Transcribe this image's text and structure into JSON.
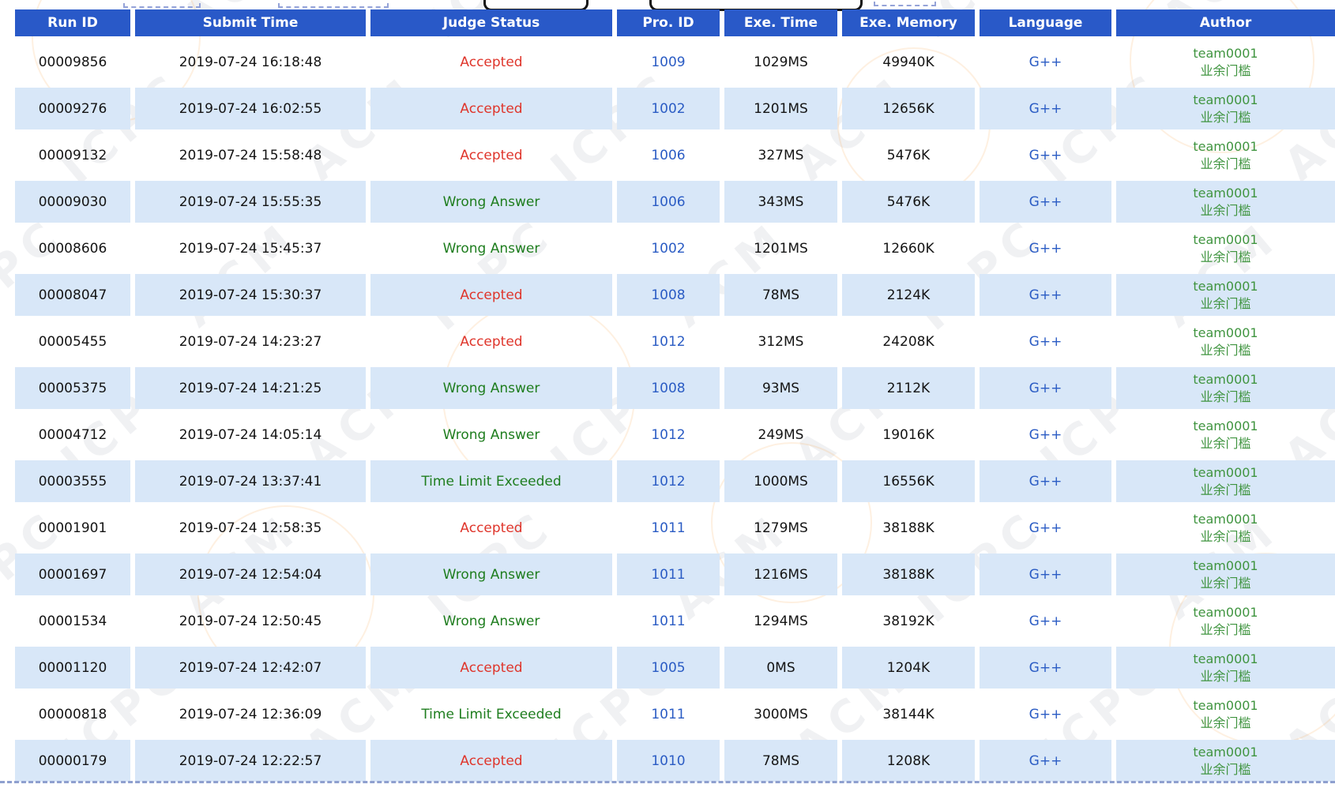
{
  "colors": {
    "header_bg": "#2959c8",
    "header_text": "#ffffff",
    "row_alt_bg": "#d8e7f8",
    "link_blue": "#2b5cc4",
    "status_accepted": "#df352b",
    "status_failed": "#1e7d1e",
    "author_green": "#3f943f",
    "divider_dash": "#8fa0cf"
  },
  "watermark": {
    "texts": [
      "ICPC",
      "ACM"
    ]
  },
  "table": {
    "columns": [
      {
        "label": "Run ID"
      },
      {
        "label": "Submit Time"
      },
      {
        "label": "Judge Status"
      },
      {
        "label": "Pro. ID"
      },
      {
        "label": "Exe. Time"
      },
      {
        "label": "Exe. Memory"
      },
      {
        "label": "Language"
      },
      {
        "label": "Author"
      }
    ],
    "rows": [
      {
        "run_id": "00009856",
        "submit_time": "2019-07-24 16:18:48",
        "status": "Accepted",
        "status_kind": "accepted",
        "pro_id": "1009",
        "exe_time": "1029MS",
        "exe_memory": "49940K",
        "language": "G++",
        "author_id": "team0001",
        "author_name": "业余门槛"
      },
      {
        "run_id": "00009276",
        "submit_time": "2019-07-24 16:02:55",
        "status": "Accepted",
        "status_kind": "accepted",
        "pro_id": "1002",
        "exe_time": "1201MS",
        "exe_memory": "12656K",
        "language": "G++",
        "author_id": "team0001",
        "author_name": "业余门槛"
      },
      {
        "run_id": "00009132",
        "submit_time": "2019-07-24 15:58:48",
        "status": "Accepted",
        "status_kind": "accepted",
        "pro_id": "1006",
        "exe_time": "327MS",
        "exe_memory": "5476K",
        "language": "G++",
        "author_id": "team0001",
        "author_name": "业余门槛"
      },
      {
        "run_id": "00009030",
        "submit_time": "2019-07-24 15:55:35",
        "status": "Wrong Answer",
        "status_kind": "failed",
        "pro_id": "1006",
        "exe_time": "343MS",
        "exe_memory": "5476K",
        "language": "G++",
        "author_id": "team0001",
        "author_name": "业余门槛"
      },
      {
        "run_id": "00008606",
        "submit_time": "2019-07-24 15:45:37",
        "status": "Wrong Answer",
        "status_kind": "failed",
        "pro_id": "1002",
        "exe_time": "1201MS",
        "exe_memory": "12660K",
        "language": "G++",
        "author_id": "team0001",
        "author_name": "业余门槛"
      },
      {
        "run_id": "00008047",
        "submit_time": "2019-07-24 15:30:37",
        "status": "Accepted",
        "status_kind": "accepted",
        "pro_id": "1008",
        "exe_time": "78MS",
        "exe_memory": "2124K",
        "language": "G++",
        "author_id": "team0001",
        "author_name": "业余门槛"
      },
      {
        "run_id": "00005455",
        "submit_time": "2019-07-24 14:23:27",
        "status": "Accepted",
        "status_kind": "accepted",
        "pro_id": "1012",
        "exe_time": "312MS",
        "exe_memory": "24208K",
        "language": "G++",
        "author_id": "team0001",
        "author_name": "业余门槛"
      },
      {
        "run_id": "00005375",
        "submit_time": "2019-07-24 14:21:25",
        "status": "Wrong Answer",
        "status_kind": "failed",
        "pro_id": "1008",
        "exe_time": "93MS",
        "exe_memory": "2112K",
        "language": "G++",
        "author_id": "team0001",
        "author_name": "业余门槛"
      },
      {
        "run_id": "00004712",
        "submit_time": "2019-07-24 14:05:14",
        "status": "Wrong Answer",
        "status_kind": "failed",
        "pro_id": "1012",
        "exe_time": "249MS",
        "exe_memory": "19016K",
        "language": "G++",
        "author_id": "team0001",
        "author_name": "业余门槛"
      },
      {
        "run_id": "00003555",
        "submit_time": "2019-07-24 13:37:41",
        "status": "Time Limit Exceeded",
        "status_kind": "failed",
        "pro_id": "1012",
        "exe_time": "1000MS",
        "exe_memory": "16556K",
        "language": "G++",
        "author_id": "team0001",
        "author_name": "业余门槛"
      },
      {
        "run_id": "00001901",
        "submit_time": "2019-07-24 12:58:35",
        "status": "Accepted",
        "status_kind": "accepted",
        "pro_id": "1011",
        "exe_time": "1279MS",
        "exe_memory": "38188K",
        "language": "G++",
        "author_id": "team0001",
        "author_name": "业余门槛"
      },
      {
        "run_id": "00001697",
        "submit_time": "2019-07-24 12:54:04",
        "status": "Wrong Answer",
        "status_kind": "failed",
        "pro_id": "1011",
        "exe_time": "1216MS",
        "exe_memory": "38188K",
        "language": "G++",
        "author_id": "team0001",
        "author_name": "业余门槛"
      },
      {
        "run_id": "00001534",
        "submit_time": "2019-07-24 12:50:45",
        "status": "Wrong Answer",
        "status_kind": "failed",
        "pro_id": "1011",
        "exe_time": "1294MS",
        "exe_memory": "38192K",
        "language": "G++",
        "author_id": "team0001",
        "author_name": "业余门槛"
      },
      {
        "run_id": "00001120",
        "submit_time": "2019-07-24 12:42:07",
        "status": "Accepted",
        "status_kind": "accepted",
        "pro_id": "1005",
        "exe_time": "0MS",
        "exe_memory": "1204K",
        "language": "G++",
        "author_id": "team0001",
        "author_name": "业余门槛"
      },
      {
        "run_id": "00000818",
        "submit_time": "2019-07-24 12:36:09",
        "status": "Time Limit Exceeded",
        "status_kind": "failed",
        "pro_id": "1011",
        "exe_time": "3000MS",
        "exe_memory": "38144K",
        "language": "G++",
        "author_id": "team0001",
        "author_name": "业余门槛"
      },
      {
        "run_id": "00000179",
        "submit_time": "2019-07-24 12:22:57",
        "status": "Accepted",
        "status_kind": "accepted",
        "pro_id": "1010",
        "exe_time": "78MS",
        "exe_memory": "1208K",
        "language": "G++",
        "author_id": "team0001",
        "author_name": "业余门槛"
      }
    ]
  }
}
